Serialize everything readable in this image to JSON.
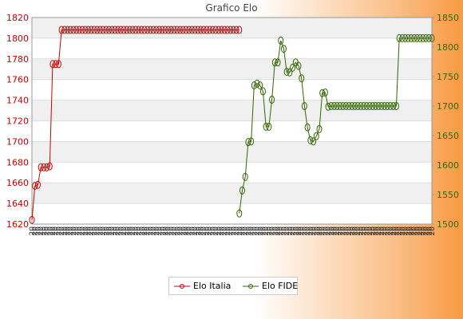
{
  "chart_data": {
    "type": "line",
    "title": "Grafico Elo",
    "y_left": {
      "ylim": [
        1620,
        1820
      ],
      "ticks": [
        1620,
        1640,
        1660,
        1680,
        1700,
        1720,
        1740,
        1760,
        1780,
        1800,
        1820
      ],
      "color": "#cc0000"
    },
    "y_right": {
      "ylim": [
        1500,
        1850
      ],
      "ticks": [
        1500,
        1550,
        1600,
        1650,
        1700,
        1750,
        1800,
        1850
      ],
      "color": "#336600"
    },
    "x_count": 136,
    "x_tick_label": "20",
    "grid": true,
    "legend_position": "bottom",
    "series": [
      {
        "name": "Elo Italia",
        "axis": "left",
        "color": "#cc0000",
        "x": [
          0,
          1,
          2,
          3,
          4,
          5,
          6,
          7,
          8,
          9,
          10,
          11,
          12,
          13,
          14,
          15,
          16,
          17,
          18,
          19,
          20,
          21,
          22,
          23,
          24,
          25,
          26,
          27,
          28,
          29,
          30,
          31,
          32,
          33,
          34,
          35,
          36,
          37,
          38,
          39,
          40,
          41,
          42,
          43,
          44,
          45,
          46,
          47,
          48,
          49,
          50,
          51,
          52,
          53,
          54,
          55,
          56,
          57,
          58,
          59,
          60,
          61,
          62,
          63,
          64,
          65,
          66,
          67,
          68,
          69,
          70
        ],
        "values": [
          1624,
          1657,
          1658,
          1675,
          1675,
          1675,
          1676,
          1775,
          1775,
          1775,
          1808,
          1808,
          1808,
          1808,
          1808,
          1808,
          1808,
          1808,
          1808,
          1808,
          1808,
          1808,
          1808,
          1808,
          1808,
          1808,
          1808,
          1808,
          1808,
          1808,
          1808,
          1808,
          1808,
          1808,
          1808,
          1808,
          1808,
          1808,
          1808,
          1808,
          1808,
          1808,
          1808,
          1808,
          1808,
          1808,
          1808,
          1808,
          1808,
          1808,
          1808,
          1808,
          1808,
          1808,
          1808,
          1808,
          1808,
          1808,
          1808,
          1808,
          1808,
          1808,
          1808,
          1808,
          1808,
          1808,
          1808,
          1808,
          1808,
          1808,
          1808
        ]
      },
      {
        "name": "Elo FIDE",
        "axis": "right",
        "color": "#336600",
        "x": [
          70,
          71,
          72,
          73,
          74,
          75,
          76,
          77,
          78,
          79,
          80,
          81,
          82,
          83,
          84,
          85,
          86,
          87,
          88,
          89,
          90,
          91,
          92,
          93,
          94,
          95,
          96,
          97,
          98,
          99,
          100,
          101,
          102,
          103,
          104,
          105,
          106,
          107,
          108,
          109,
          110,
          111,
          112,
          113,
          114,
          115,
          116,
          117,
          118,
          119,
          120,
          121,
          122,
          123,
          124,
          125,
          126,
          127,
          128,
          129,
          130,
          131,
          132,
          133,
          134,
          135
        ],
        "values": [
          1518,
          1557,
          1580,
          1639,
          1640,
          1735,
          1738,
          1735,
          1725,
          1665,
          1665,
          1711,
          1774,
          1774,
          1811,
          1797,
          1758,
          1757,
          1765,
          1774,
          1768,
          1747,
          1700,
          1664,
          1642,
          1640,
          1649,
          1661,
          1722,
          1723,
          1699,
          1700,
          1700,
          1700,
          1700,
          1700,
          1700,
          1700,
          1700,
          1700,
          1700,
          1700,
          1700,
          1700,
          1700,
          1700,
          1700,
          1700,
          1700,
          1700,
          1700,
          1700,
          1700,
          1700,
          1815,
          1815,
          1815,
          1815,
          1815,
          1815,
          1815,
          1815,
          1815,
          1815,
          1815,
          1815
        ]
      }
    ]
  }
}
